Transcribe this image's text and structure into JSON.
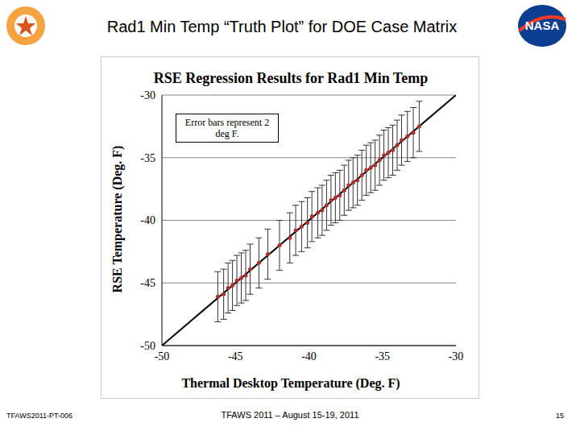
{
  "slide": {
    "title": "Rad1 Min Temp “Truth Plot” for DOE Case Matrix",
    "logo_text": "NASA",
    "footer_left": "TFAWS2011-PT-006",
    "footer_center": "TFAWS 2011 – August 15-19, 2011",
    "page": "15"
  },
  "chart_data": {
    "type": "scatter",
    "title": "RSE Regression Results for Rad1 Min Temp",
    "x_label": "Thermal Desktop Temperature (Deg. F)",
    "y_label": "RSE Temperature (Deg. F)",
    "annotation": "Error bars represent 2 deg F.",
    "xlim": [
      -50,
      -30
    ],
    "ylim": [
      -50,
      -30
    ],
    "xticks": [
      -50,
      -45,
      -40,
      -35,
      -30
    ],
    "yticks": [
      -50,
      -45,
      -40,
      -35,
      -30
    ],
    "grid": "y",
    "series": [
      {
        "type": "line",
        "color": "#000000",
        "x": [
          -50,
          -30
        ],
        "values": [
          -50,
          -30
        ]
      },
      {
        "type": "scatter",
        "color": "#b03030",
        "marker": "circle",
        "x": [
          -46.2,
          -45.8,
          -45.5,
          -45.2,
          -44.9,
          -44.6,
          -44.3,
          -44.0,
          -43.4,
          -42.8,
          -42.0,
          -41.3,
          -40.9,
          -40.5,
          -40.1,
          -39.8,
          -39.4,
          -39.1,
          -38.8,
          -38.5,
          -38.2,
          -37.9,
          -37.6,
          -37.3,
          -37.0,
          -36.7,
          -36.4,
          -36.1,
          -35.8,
          -35.5,
          -35.2,
          -34.9,
          -34.6,
          -34.3,
          -34.0,
          -33.7,
          -33.3,
          -32.9,
          -32.5
        ],
        "values": [
          -46.1,
          -45.9,
          -45.4,
          -45.2,
          -44.8,
          -44.6,
          -44.4,
          -43.9,
          -43.4,
          -42.7,
          -42.0,
          -41.4,
          -40.8,
          -40.5,
          -40.2,
          -39.7,
          -39.4,
          -39.2,
          -38.8,
          -38.4,
          -38.2,
          -38.0,
          -37.6,
          -37.2,
          -37.0,
          -36.8,
          -36.4,
          -36.0,
          -35.8,
          -35.6,
          -35.2,
          -34.8,
          -34.6,
          -34.4,
          -34.0,
          -33.6,
          -33.3,
          -33.0,
          -32.5
        ],
        "error": 2
      }
    ]
  }
}
